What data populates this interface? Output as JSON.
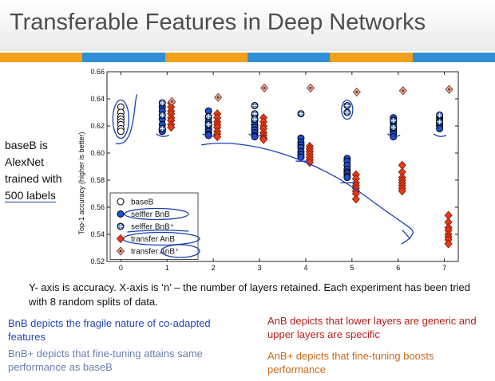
{
  "slide": {
    "title": "Transferable Features in Deep Networks",
    "side_note": [
      "baseB is",
      "AlexNet",
      "trained with"
    ],
    "side_note_underlined": "500 labels",
    "caption": "Y- axis is accuracy. X-axis is ‘n’ – the number of layers retained. Each experiment has been tried with 8 random splits of data.",
    "notes": {
      "bnb": "BnB depicts the fragile nature of co-adapted features",
      "bnb_plus": "BnB+ depicts that fine-tuning attains same performance as baseB",
      "anb": "AnB depicts that lower layers are generic and upper layers are specific",
      "anb_plus": "AnB+ depicts that fine-tuning boosts performance"
    },
    "stripe_colors": [
      "#f2a01c",
      "#2f8fd6",
      "#f2a01c",
      "#2f8fd6",
      "#f2a01c",
      "#2f8fd6"
    ],
    "annotation_color": "#1d3fb0"
  },
  "chart_data": {
    "type": "scatter",
    "ylabel": "Top-1 accuracy (higher is better)",
    "xlim": [
      -0.3,
      7.3
    ],
    "ylim": [
      0.52,
      0.66
    ],
    "xticks": [
      0,
      1,
      2,
      3,
      4,
      5,
      6,
      7
    ],
    "yticks": [
      "0.52",
      "0.54",
      "0.56",
      "0.58",
      "0.60",
      "0.62",
      "0.64",
      "0.66"
    ],
    "legend_position": "bottom-left",
    "series": [
      {
        "name": "baseB",
        "marker": "circle-open",
        "color": "#ffffff",
        "edge": "#000000",
        "points": [
          [
            0,
            0.634
          ],
          [
            0,
            0.63
          ],
          [
            0,
            0.627
          ],
          [
            0,
            0.625
          ],
          [
            0,
            0.623
          ],
          [
            0,
            0.621
          ],
          [
            0,
            0.618
          ],
          [
            0,
            0.616
          ]
        ]
      },
      {
        "name": "selffer BnB",
        "marker": "circle",
        "color": "#1f4fd6",
        "edge": "#000000",
        "points": [
          [
            1,
            0.634
          ],
          [
            1,
            0.631
          ],
          [
            1,
            0.628
          ],
          [
            1,
            0.625
          ],
          [
            1,
            0.621
          ],
          [
            1,
            0.618
          ],
          [
            1,
            0.617
          ],
          [
            1,
            0.616
          ],
          [
            2,
            0.631
          ],
          [
            2,
            0.626
          ],
          [
            2,
            0.623
          ],
          [
            2,
            0.62
          ],
          [
            2,
            0.618
          ],
          [
            2,
            0.616
          ],
          [
            2,
            0.614
          ],
          [
            2,
            0.613
          ],
          [
            3,
            0.628
          ],
          [
            3,
            0.624
          ],
          [
            3,
            0.621
          ],
          [
            3,
            0.619
          ],
          [
            3,
            0.617
          ],
          [
            3,
            0.615
          ],
          [
            3,
            0.613
          ],
          [
            3,
            0.612
          ],
          [
            4,
            0.611
          ],
          [
            4,
            0.608
          ],
          [
            4,
            0.606
          ],
          [
            4,
            0.604
          ],
          [
            4,
            0.601
          ],
          [
            4,
            0.599
          ],
          [
            4,
            0.597
          ],
          [
            5,
            0.596
          ],
          [
            5,
            0.594
          ],
          [
            5,
            0.591
          ],
          [
            5,
            0.588
          ],
          [
            5,
            0.586
          ],
          [
            5,
            0.585
          ],
          [
            5,
            0.583
          ],
          [
            5,
            0.582
          ],
          [
            6,
            0.626
          ],
          [
            6,
            0.622
          ],
          [
            6,
            0.619
          ],
          [
            6,
            0.617
          ],
          [
            6,
            0.616
          ],
          [
            6,
            0.614
          ],
          [
            6,
            0.612
          ],
          [
            7,
            0.628
          ],
          [
            7,
            0.626
          ],
          [
            7,
            0.624
          ],
          [
            7,
            0.622
          ],
          [
            7,
            0.62
          ],
          [
            7,
            0.618
          ]
        ]
      },
      {
        "name": "selffer BnB⁺",
        "marker": "circle-plus",
        "color": "#4a78c8",
        "edge": "#000000",
        "points": [
          [
            1,
            0.637
          ],
          [
            1,
            0.628
          ],
          [
            1,
            0.618
          ],
          [
            2,
            0.627
          ],
          [
            2,
            0.621
          ],
          [
            3,
            0.635
          ],
          [
            3,
            0.629
          ],
          [
            3,
            0.625
          ],
          [
            4,
            0.629
          ],
          [
            5,
            0.635
          ],
          [
            5,
            0.63
          ],
          [
            6,
            0.624
          ],
          [
            6,
            0.619
          ],
          [
            7,
            0.628
          ],
          [
            7,
            0.623
          ]
        ]
      },
      {
        "name": "transfer AnB",
        "marker": "diamond",
        "color": "#ee3a12",
        "edge": "#7a1a08",
        "points": [
          [
            1,
            0.637
          ],
          [
            1,
            0.634
          ],
          [
            1,
            0.631
          ],
          [
            1,
            0.629
          ],
          [
            1,
            0.626
          ],
          [
            1,
            0.624
          ],
          [
            1,
            0.621
          ],
          [
            1,
            0.619
          ],
          [
            2,
            0.629
          ],
          [
            2,
            0.626
          ],
          [
            2,
            0.623
          ],
          [
            2,
            0.621
          ],
          [
            2,
            0.619
          ],
          [
            2,
            0.616
          ],
          [
            2,
            0.614
          ],
          [
            2,
            0.612
          ],
          [
            3,
            0.626
          ],
          [
            3,
            0.623
          ],
          [
            3,
            0.62
          ],
          [
            3,
            0.618
          ],
          [
            3,
            0.615
          ],
          [
            3,
            0.613
          ],
          [
            3,
            0.611
          ],
          [
            3,
            0.61
          ],
          [
            4,
            0.605
          ],
          [
            4,
            0.603
          ],
          [
            4,
            0.601
          ],
          [
            4,
            0.599
          ],
          [
            4,
            0.597
          ],
          [
            4,
            0.595
          ],
          [
            4,
            0.593
          ],
          [
            5,
            0.584
          ],
          [
            5,
            0.581
          ],
          [
            5,
            0.578
          ],
          [
            5,
            0.576
          ],
          [
            5,
            0.574
          ],
          [
            5,
            0.572
          ],
          [
            5,
            0.57
          ],
          [
            5,
            0.566
          ],
          [
            6,
            0.591
          ],
          [
            6,
            0.586
          ],
          [
            6,
            0.582
          ],
          [
            6,
            0.58
          ],
          [
            6,
            0.578
          ],
          [
            6,
            0.576
          ],
          [
            6,
            0.574
          ],
          [
            6,
            0.572
          ],
          [
            7,
            0.554
          ],
          [
            7,
            0.549
          ],
          [
            7,
            0.545
          ],
          [
            7,
            0.543
          ],
          [
            7,
            0.54
          ],
          [
            7,
            0.538
          ],
          [
            7,
            0.536
          ],
          [
            7,
            0.533
          ]
        ]
      },
      {
        "name": "transfer AnB⁺",
        "marker": "diamond-dot",
        "color": "#f0a58c",
        "edge": "#5a3a30",
        "points": [
          [
            1,
            0.638
          ],
          [
            2,
            0.641
          ],
          [
            3,
            0.648
          ],
          [
            4,
            0.648
          ],
          [
            5,
            0.645
          ],
          [
            6,
            0.646
          ],
          [
            7,
            0.647
          ]
        ]
      }
    ]
  }
}
